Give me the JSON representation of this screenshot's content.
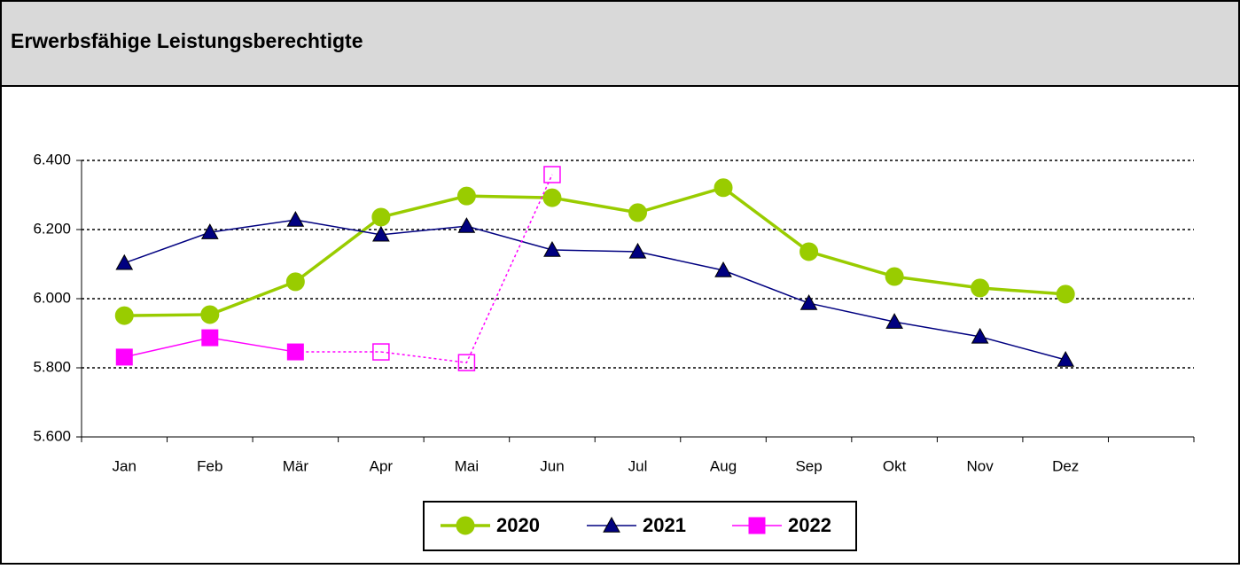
{
  "chart_data": {
    "type": "line",
    "title": "Erwerbsfähige Leistungsberechtigte",
    "categories": [
      "Jan",
      "Feb",
      "Mär",
      "Apr",
      "Mai",
      "Jun",
      "Jul",
      "Aug",
      "Sep",
      "Okt",
      "Nov",
      "Dez",
      null
    ],
    "series": [
      {
        "name": "2020",
        "color": "#99cc00",
        "marker": "circle",
        "values": [
          5951,
          5954,
          6049,
          6236,
          6297,
          6292,
          6249,
          6321,
          6136,
          6064,
          6031,
          6013,
          null
        ]
      },
      {
        "name": "2021",
        "color": "#000080",
        "marker": "triangle",
        "values": [
          6103,
          6192,
          6228,
          6185,
          6210,
          6141,
          6136,
          6082,
          5987,
          5933,
          5890,
          5823,
          null
        ]
      },
      {
        "name": "2022",
        "color": "#ff00ff",
        "marker": "square",
        "dashed_from": 3,
        "values": [
          5831,
          5887,
          5846,
          5846,
          5815,
          6359,
          null,
          null,
          null,
          null,
          null,
          null,
          null
        ]
      }
    ],
    "ylim": [
      5600,
      6400
    ],
    "yticks": [
      {
        "value": 5600,
        "label": "5.600"
      },
      {
        "value": 5800,
        "label": "5.800"
      },
      {
        "value": 6000,
        "label": "6.000"
      },
      {
        "value": 6200,
        "label": "6.200"
      },
      {
        "value": 6400,
        "label": "6.400"
      }
    ],
    "grid": true
  }
}
